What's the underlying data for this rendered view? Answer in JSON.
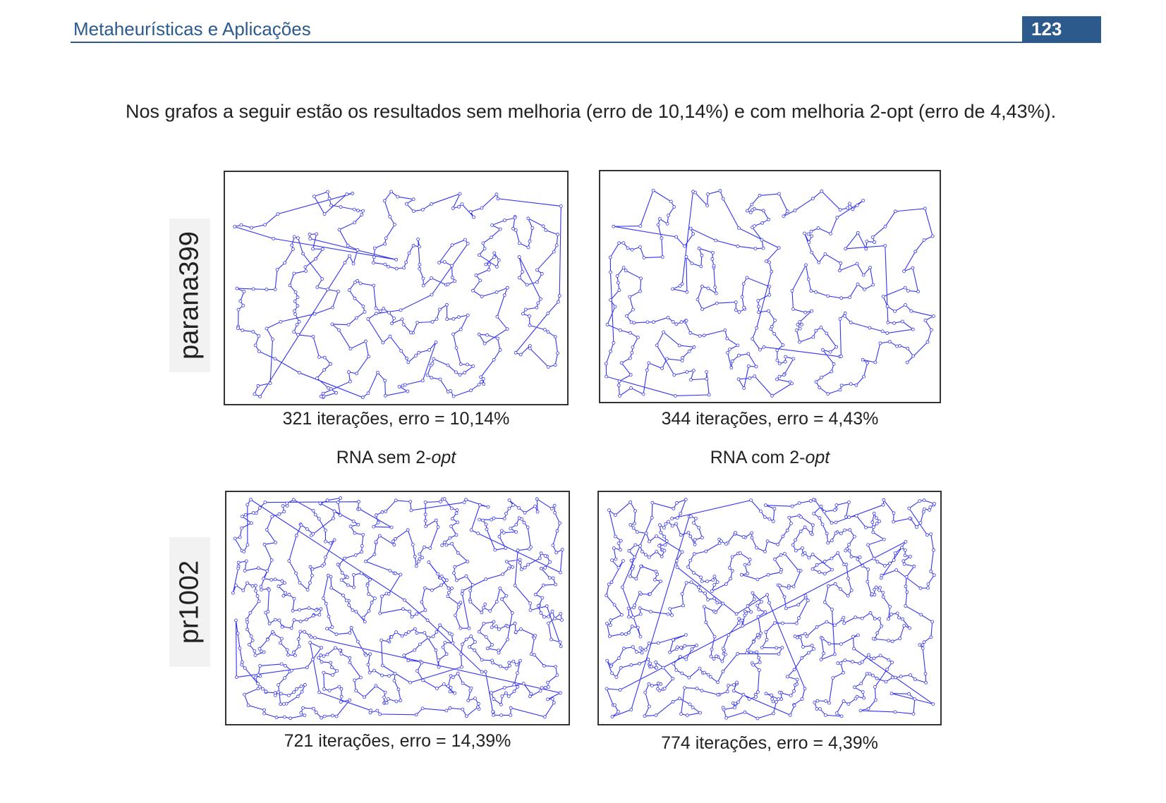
{
  "header": {
    "title": "Metaheurísticas e Aplicações",
    "page_number": "123",
    "accent_color": "#2d5a8c"
  },
  "paragraph": "Nos grafos a seguir estão os resultados sem melhoria (erro de 10,14%) e com melhoria 2-opt (erro de 4,43%).",
  "figure": {
    "rows": [
      {
        "instance": "parana399",
        "panels": [
          {
            "caption": "321 iterações, erro = 10,14%"
          },
          {
            "caption": "344 iterações, erro = 4,43%"
          }
        ]
      },
      {
        "instance": "pr1002",
        "panels": [
          {
            "caption": "721 iterações, erro = 14,39%"
          },
          {
            "caption": "774 iterações, erro = 4,39%"
          }
        ]
      }
    ],
    "methods": [
      {
        "prefix": "RNA sem 2-",
        "italic": "opt"
      },
      {
        "prefix": "RNA com 2-",
        "italic": "opt"
      }
    ],
    "tour_color": "#3333ee"
  }
}
